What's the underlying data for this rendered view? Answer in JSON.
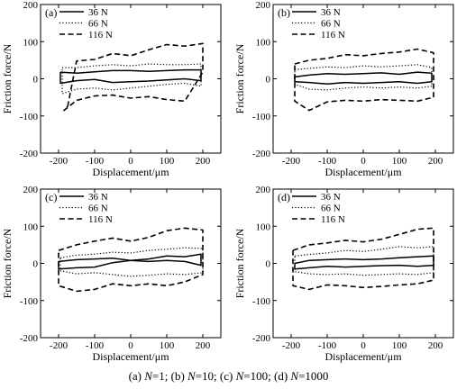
{
  "caption": {
    "a": "(a) ",
    "a_var": "N",
    "a_rest": "=1; ",
    "b": "(b) ",
    "b_var": "N",
    "b_rest": "=10; ",
    "c": "(c) ",
    "c_var": "N",
    "c_rest": "=100; ",
    "d": "(d) ",
    "d_var": "N",
    "d_rest": "=1000"
  },
  "chart_data": [
    {
      "panel_label": "(a)",
      "type": "line",
      "xlabel": "Displacement/μm",
      "ylabel": "Friction force/N",
      "xlim": [
        -250,
        250
      ],
      "ylim": [
        -200,
        200
      ],
      "xticks": [
        -200,
        -100,
        0,
        100,
        200
      ],
      "yticks": [
        -200,
        -100,
        0,
        100,
        200
      ],
      "legend_position": "top-left",
      "series": [
        {
          "name": "36 N",
          "style": "solid",
          "x": [
            -195,
            -150,
            -100,
            -50,
            0,
            50,
            100,
            150,
            195,
            195,
            150,
            100,
            50,
            0,
            -50,
            -100,
            -150,
            -195,
            -195
          ],
          "y": [
            18,
            15,
            19,
            22,
            22,
            20,
            22,
            24,
            24,
            -5,
            0,
            -3,
            -6,
            -8,
            -10,
            -2,
            -5,
            -12,
            18
          ]
        },
        {
          "name": "66 N",
          "style": "dotted",
          "x": [
            -190,
            -150,
            -100,
            -50,
            0,
            50,
            100,
            150,
            195,
            195,
            150,
            100,
            50,
            0,
            -50,
            -100,
            -150,
            -190,
            -190
          ],
          "y": [
            30,
            30,
            35,
            38,
            35,
            40,
            38,
            38,
            40,
            -20,
            -12,
            -15,
            -20,
            -25,
            -30,
            -25,
            -28,
            -40,
            30
          ]
        },
        {
          "name": "116 N",
          "style": "dashed",
          "x": [
            -175,
            -150,
            -100,
            -50,
            0,
            50,
            100,
            150,
            200,
            200,
            150,
            100,
            50,
            0,
            -50,
            -100,
            -150,
            -185,
            -175
          ],
          "y": [
            -75,
            48,
            52,
            68,
            62,
            78,
            92,
            88,
            95,
            18,
            -60,
            -56,
            -48,
            -52,
            -44,
            -46,
            -58,
            -85,
            -75
          ]
        }
      ]
    },
    {
      "panel_label": "(b)",
      "type": "line",
      "xlabel": "Displacement/μm",
      "ylabel": "Friction force/N",
      "xlim": [
        -250,
        250
      ],
      "ylim": [
        -200,
        200
      ],
      "xticks": [
        -200,
        -100,
        0,
        100,
        200
      ],
      "yticks": [
        -200,
        -100,
        0,
        100,
        200
      ],
      "legend_position": "top-left",
      "series": [
        {
          "name": "36 N",
          "style": "solid",
          "x": [
            -190,
            -150,
            -100,
            -50,
            0,
            50,
            100,
            150,
            190,
            190,
            150,
            100,
            50,
            0,
            -50,
            -100,
            -150,
            -190,
            -190
          ],
          "y": [
            5,
            10,
            14,
            12,
            14,
            16,
            12,
            18,
            15,
            -8,
            -12,
            -8,
            -10,
            -12,
            -10,
            -14,
            -10,
            -8,
            5
          ]
        },
        {
          "name": "66 N",
          "style": "dotted",
          "x": [
            -190,
            -150,
            -100,
            -50,
            0,
            50,
            100,
            150,
            190,
            190,
            150,
            100,
            50,
            0,
            -50,
            -100,
            -150,
            -190,
            -190
          ],
          "y": [
            25,
            28,
            32,
            30,
            35,
            32,
            35,
            38,
            30,
            -20,
            -25,
            -22,
            -25,
            -22,
            -25,
            -30,
            -28,
            -15,
            25
          ]
        },
        {
          "name": "116 N",
          "style": "dashed",
          "x": [
            -190,
            -150,
            -100,
            -50,
            0,
            50,
            100,
            150,
            195,
            195,
            150,
            100,
            50,
            0,
            -50,
            -100,
            -150,
            -190,
            -190
          ],
          "y": [
            40,
            50,
            55,
            65,
            62,
            68,
            72,
            80,
            70,
            -50,
            -60,
            -58,
            -56,
            -60,
            -58,
            -62,
            -85,
            -60,
            40
          ]
        }
      ]
    },
    {
      "panel_label": "(c)",
      "type": "line",
      "xlabel": "Displacement/μm",
      "ylabel": "Friction force/N",
      "xlim": [
        -250,
        250
      ],
      "ylim": [
        -200,
        200
      ],
      "xticks": [
        -200,
        -100,
        0,
        100,
        200
      ],
      "yticks": [
        -200,
        -100,
        0,
        100,
        200
      ],
      "legend_position": "top-left",
      "series": [
        {
          "name": "36 N",
          "style": "solid",
          "x": [
            -200,
            -150,
            -100,
            -50,
            0,
            50,
            100,
            150,
            195,
            195,
            150,
            100,
            50,
            0,
            -50,
            -100,
            -150,
            -200,
            -200
          ],
          "y": [
            5,
            10,
            12,
            14,
            8,
            12,
            20,
            18,
            25,
            -5,
            5,
            8,
            5,
            8,
            2,
            -10,
            -12,
            -15,
            5
          ]
        },
        {
          "name": "66 N",
          "style": "dotted",
          "x": [
            -195,
            -150,
            -100,
            -50,
            0,
            50,
            100,
            150,
            200,
            200,
            150,
            100,
            50,
            0,
            -50,
            -100,
            -150,
            -195,
            -195
          ],
          "y": [
            15,
            22,
            25,
            30,
            28,
            35,
            38,
            42,
            40,
            -25,
            -30,
            -28,
            -32,
            -35,
            -30,
            -25,
            -28,
            -20,
            15
          ]
        },
        {
          "name": "116 N",
          "style": "dashed",
          "x": [
            -200,
            -150,
            -100,
            -50,
            0,
            50,
            100,
            150,
            200,
            200,
            150,
            100,
            50,
            0,
            -50,
            -100,
            -150,
            -200,
            -200
          ],
          "y": [
            35,
            50,
            60,
            68,
            60,
            70,
            88,
            95,
            90,
            -30,
            -50,
            -60,
            -55,
            -60,
            -55,
            -70,
            -75,
            -60,
            35
          ]
        }
      ]
    },
    {
      "panel_label": "(d)",
      "type": "line",
      "xlabel": "Displacement/μm",
      "ylabel": "Friction force/N",
      "xlim": [
        -250,
        250
      ],
      "ylim": [
        -200,
        200
      ],
      "xticks": [
        -200,
        -100,
        0,
        100,
        200
      ],
      "yticks": [
        -200,
        -100,
        0,
        100,
        200
      ],
      "legend_position": "top-left",
      "series": [
        {
          "name": "36 N",
          "style": "solid",
          "x": [
            -190,
            -150,
            -100,
            -50,
            0,
            50,
            100,
            150,
            195,
            195,
            150,
            100,
            50,
            0,
            -50,
            -100,
            -150,
            -190,
            -190
          ],
          "y": [
            0,
            8,
            10,
            12,
            10,
            12,
            15,
            18,
            20,
            -5,
            -8,
            -5,
            -6,
            -8,
            -10,
            -8,
            -12,
            -15,
            0
          ]
        },
        {
          "name": "66 N",
          "style": "dotted",
          "x": [
            -190,
            -150,
            -100,
            -50,
            0,
            50,
            100,
            150,
            195,
            195,
            150,
            100,
            50,
            0,
            -50,
            -100,
            -150,
            -190,
            -190
          ],
          "y": [
            20,
            24,
            28,
            35,
            32,
            38,
            45,
            42,
            45,
            -25,
            -30,
            -28,
            -30,
            -32,
            -28,
            -30,
            -28,
            -22,
            20
          ]
        },
        {
          "name": "116 N",
          "style": "dashed",
          "x": [
            -195,
            -150,
            -100,
            -50,
            0,
            50,
            100,
            150,
            195,
            195,
            150,
            100,
            50,
            0,
            -50,
            -100,
            -150,
            -195,
            -195
          ],
          "y": [
            35,
            50,
            55,
            62,
            58,
            65,
            78,
            92,
            95,
            -45,
            -55,
            -58,
            -62,
            -65,
            -60,
            -58,
            -70,
            -60,
            35
          ]
        }
      ]
    }
  ]
}
